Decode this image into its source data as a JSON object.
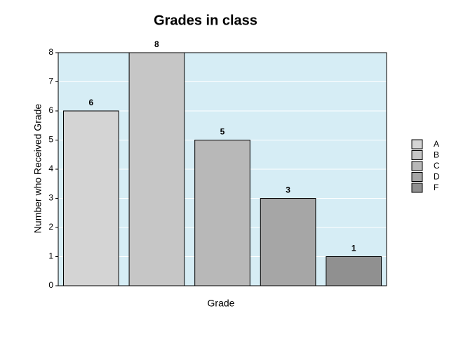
{
  "chart_data": {
    "type": "bar",
    "title": "Grades in class",
    "x_label": "Grade",
    "y_label": "Number who Received Grade",
    "categories": [
      "A",
      "B",
      "C",
      "D",
      "F"
    ],
    "values": [
      6,
      8,
      5,
      3,
      1
    ],
    "colors": [
      "#d4d4d4",
      "#c6c6c6",
      "#b8b8b8",
      "#a6a6a6",
      "#909090"
    ],
    "ylim": [
      0,
      8
    ],
    "yticks": [
      0,
      1,
      2,
      3,
      4,
      5,
      6,
      7,
      8
    ],
    "grid": true,
    "legend": "right",
    "background": "#d6edf5"
  }
}
